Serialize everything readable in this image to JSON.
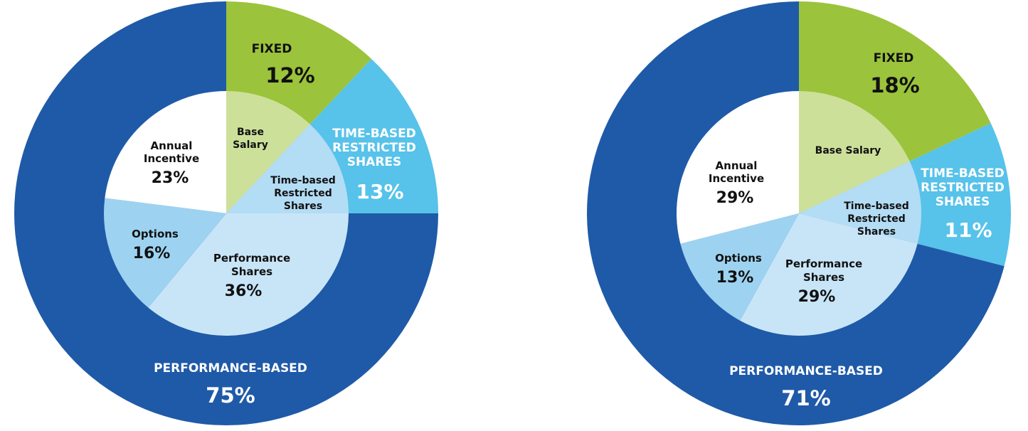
{
  "colors": {
    "performance_outer": "#1f5aa8",
    "fixed_outer": "#9bc33b",
    "time_based_outer": "#57c2ea",
    "base_salary_inner": "#cde09a",
    "time_based_inner": "#b3dcf5",
    "performance_shares_inner": "#c8e5f8",
    "options_inner": "#9dd3f1",
    "annual_incentive_inner": "#ffffff",
    "dark_text": "#111111",
    "light_text": "#ffffff"
  },
  "chart_data": [
    {
      "type": "pie",
      "outer_ring": [
        {
          "name": "FIXED",
          "value": 12,
          "label": "12%",
          "color_key": "fixed_outer"
        },
        {
          "name": "TIME-BASED RESTRICTED SHARES",
          "value": 13,
          "label": "13%",
          "color_key": "time_based_outer"
        },
        {
          "name": "PERFORMANCE-BASED",
          "value": 75,
          "label": "75%",
          "color_key": "performance_outer"
        }
      ],
      "inner_pie": [
        {
          "name": "Base Salary",
          "value": 12,
          "label": "",
          "color_key": "base_salary_inner"
        },
        {
          "name": "Time-based Restricted Shares",
          "value": 13,
          "label": "",
          "color_key": "time_based_inner"
        },
        {
          "name": "Performance Shares",
          "value": 36,
          "label": "36%",
          "color_key": "performance_shares_inner"
        },
        {
          "name": "Options",
          "value": 16,
          "label": "16%",
          "color_key": "options_inner"
        },
        {
          "name": "Annual Incentive",
          "value": 23,
          "label": "23%",
          "color_key": "annual_incentive_inner"
        }
      ]
    },
    {
      "type": "pie",
      "outer_ring": [
        {
          "name": "FIXED",
          "value": 18,
          "label": "18%",
          "color_key": "fixed_outer"
        },
        {
          "name": "TIME-BASED RESTRICTED SHARES",
          "value": 11,
          "label": "11%",
          "color_key": "time_based_outer"
        },
        {
          "name": "PERFORMANCE-BASED",
          "value": 71,
          "label": "71%",
          "color_key": "performance_outer"
        }
      ],
      "inner_pie": [
        {
          "name": "Base Salary",
          "value": 18,
          "label": "",
          "color_key": "base_salary_inner"
        },
        {
          "name": "Time-based Restricted Shares",
          "value": 11,
          "label": "",
          "color_key": "time_based_inner"
        },
        {
          "name": "Performance Shares",
          "value": 29,
          "label": "29%",
          "color_key": "performance_shares_inner"
        },
        {
          "name": "Options",
          "value": 13,
          "label": "13%",
          "color_key": "options_inner"
        },
        {
          "name": "Annual Incentive",
          "value": 29,
          "label": "29%",
          "color_key": "annual_incentive_inner"
        }
      ]
    }
  ]
}
